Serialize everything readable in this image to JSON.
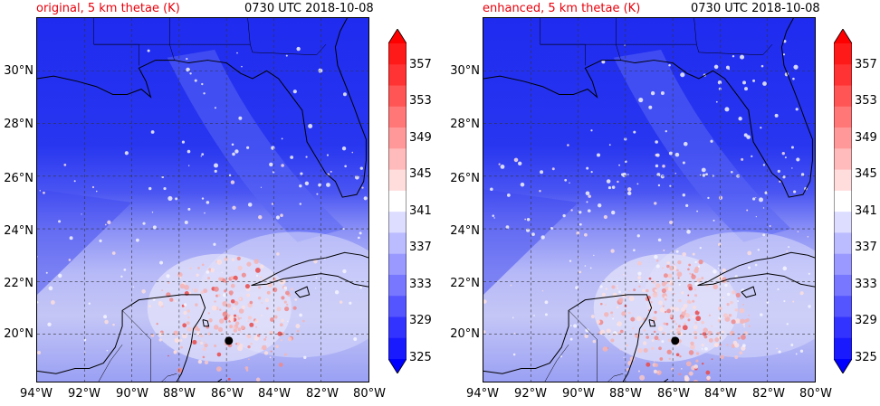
{
  "panels": [
    {
      "title_left": "original, 5 km thetae (K)",
      "title_right": "0730 UTC 2018-10-08",
      "variant": "original"
    },
    {
      "title_left": "enhanced, 5 km thetae (K)",
      "title_right": "0730 UTC 2018-10-08",
      "variant": "enhanced"
    }
  ],
  "map": {
    "lon_range": [
      -94,
      -80
    ],
    "lat_range": [
      18.2,
      32
    ],
    "lat_ticks": [
      "30°N",
      "28°N",
      "26°N",
      "24°N",
      "22°N",
      "20°N"
    ],
    "lon_ticks": [
      "94°W",
      "92°W",
      "90°W",
      "88°W",
      "86°W",
      "84°W",
      "82°W",
      "80°W"
    ],
    "storm_center": {
      "lon": -85.9,
      "lat": 19.75
    }
  },
  "colorbar": {
    "ticks": [
      "357",
      "353",
      "349",
      "345",
      "341",
      "337",
      "333",
      "329",
      "325"
    ],
    "range": [
      325,
      357
    ],
    "colors": [
      "#0000ff",
      "#1a1aff",
      "#3333ff",
      "#5555ff",
      "#7777ff",
      "#9999ff",
      "#bbbbff",
      "#ddddff",
      "#ffffff",
      "#ffdddd",
      "#ffbbbb",
      "#ff9999",
      "#ff7777",
      "#ff5555",
      "#ff3333",
      "#ff1a1a",
      "#ff0000"
    ]
  }
}
